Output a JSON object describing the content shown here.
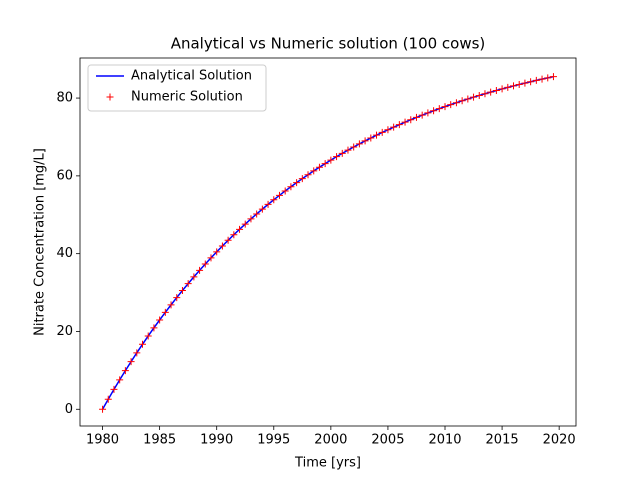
{
  "chart_data": {
    "type": "line",
    "title": "Analytical vs Numeric solution (100 cows)",
    "xlabel": "Time [yrs]",
    "ylabel": "Nitrate Concentration [mg/L]",
    "x": [
      1980,
      1980.5,
      1981,
      1981.5,
      1982,
      1982.5,
      1983,
      1983.5,
      1984,
      1984.5,
      1985,
      1985.5,
      1986,
      1986.5,
      1987,
      1987.5,
      1988,
      1988.5,
      1989,
      1989.5,
      1990,
      1990.5,
      1991,
      1991.5,
      1992,
      1992.5,
      1993,
      1993.5,
      1994,
      1994.5,
      1995,
      1995.5,
      1996,
      1996.5,
      1997,
      1997.5,
      1998,
      1998.5,
      1999,
      1999.5,
      2000,
      2000.5,
      2001,
      2001.5,
      2002,
      2002.5,
      2003,
      2003.5,
      2004,
      2004.5,
      2005,
      2005.5,
      2006,
      2006.5,
      2007,
      2007.5,
      2008,
      2008.5,
      2009,
      2009.5,
      2010,
      2010.5,
      2011,
      2011.5,
      2012,
      2012.5,
      2013,
      2013.5,
      2014,
      2014.5,
      2015,
      2015.5,
      2016,
      2016.5,
      2017,
      2017.5,
      2018,
      2018.5,
      2019,
      2019.5
    ],
    "series": [
      {
        "name": "Analytical Solution",
        "color": "#0000ff",
        "style": "line",
        "values": [
          0,
          2.58,
          5.1,
          7.55,
          9.93,
          12.25,
          14.51,
          16.7,
          18.84,
          20.93,
          22.95,
          24.92,
          26.84,
          28.71,
          30.53,
          32.3,
          34.03,
          35.7,
          37.34,
          38.93,
          40.47,
          41.98,
          43.44,
          44.87,
          46.26,
          47.61,
          48.93,
          50.21,
          51.45,
          52.67,
          53.85,
          55,
          56.12,
          57.21,
          58.27,
          59.3,
          60.3,
          61.28,
          62.23,
          63.16,
          64.06,
          64.94,
          65.79,
          66.62,
          67.43,
          68.22,
          68.99,
          69.73,
          70.46,
          71.17,
          71.85,
          72.52,
          73.17,
          73.81,
          74.43,
          75.03,
          75.61,
          76.18,
          76.74,
          77.28,
          77.8,
          78.31,
          78.81,
          79.3,
          79.77,
          80.23,
          80.67,
          81.11,
          81.53,
          81.94,
          82.35,
          82.74,
          83.12,
          83.49,
          83.85,
          84.2,
          84.54,
          84.87,
          85.19,
          85.51
        ]
      },
      {
        "name": "Numeric Solution",
        "color": "#ff0000",
        "style": "plus",
        "values": [
          0,
          2.58,
          5.1,
          7.55,
          9.93,
          12.25,
          14.51,
          16.7,
          18.84,
          20.93,
          22.95,
          24.92,
          26.84,
          28.71,
          30.53,
          32.3,
          34.03,
          35.7,
          37.34,
          38.93,
          40.47,
          41.98,
          43.44,
          44.87,
          46.26,
          47.61,
          48.93,
          50.21,
          51.45,
          52.67,
          53.85,
          55,
          56.12,
          57.21,
          58.27,
          59.3,
          60.3,
          61.28,
          62.23,
          63.16,
          64.06,
          64.94,
          65.79,
          66.62,
          67.43,
          68.22,
          68.99,
          69.73,
          70.46,
          71.17,
          71.85,
          72.52,
          73.17,
          73.81,
          74.43,
          75.03,
          75.61,
          76.18,
          76.74,
          77.28,
          77.8,
          78.31,
          78.81,
          79.3,
          79.77,
          80.23,
          80.67,
          81.11,
          81.53,
          81.94,
          82.35,
          82.74,
          83.12,
          83.49,
          83.85,
          84.2,
          84.54,
          84.87,
          85.19,
          85.51
        ]
      }
    ],
    "xlim": [
      1978.025,
      2021.475
    ],
    "ylim": [
      -4.3,
      90.3
    ],
    "xticks": [
      1980,
      1985,
      1990,
      1995,
      2000,
      2005,
      2010,
      2015,
      2020
    ],
    "yticks": [
      0,
      20,
      40,
      60,
      80
    ],
    "legend": "upper left"
  }
}
